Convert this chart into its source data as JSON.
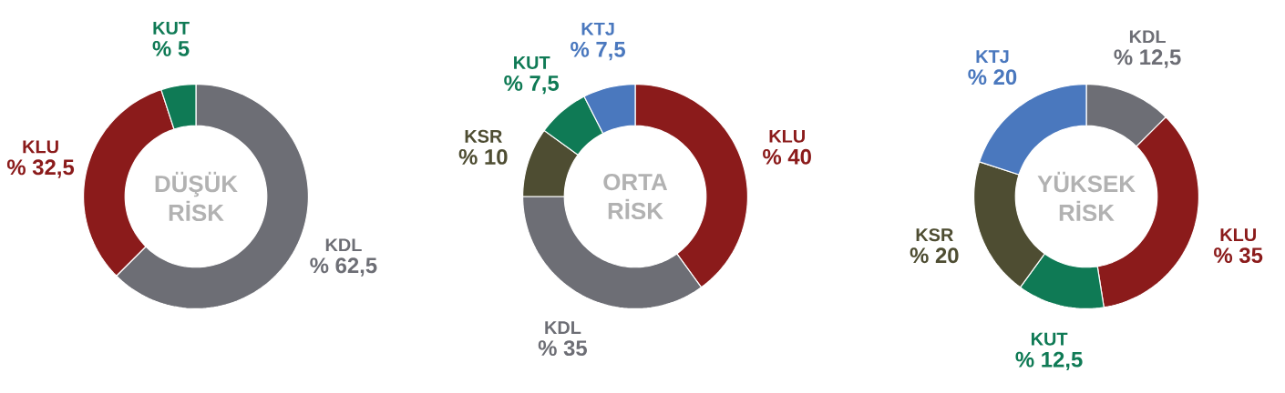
{
  "chart_data": [
    {
      "type": "donut",
      "title": "DÜŞÜK RİSK",
      "categories": [
        "KDL",
        "KLU",
        "KUT"
      ],
      "values": [
        62.5,
        32.5,
        5
      ],
      "colors": [
        "#6d6e75",
        "#8b1b1b",
        "#0f7a55"
      ],
      "value_labels": [
        "% 62,5",
        "% 32,5",
        "% 5"
      ]
    },
    {
      "type": "donut",
      "title": "ORTA RİSK",
      "categories": [
        "KLU",
        "KDL",
        "KSR",
        "KUT",
        "KTJ"
      ],
      "values": [
        40,
        35,
        10,
        7.5,
        7.5
      ],
      "colors": [
        "#8b1b1b",
        "#6d6e75",
        "#4e4d32",
        "#0f7a55",
        "#4a78be"
      ],
      "value_labels": [
        "% 40",
        "% 35",
        "% 10",
        "% 7,5",
        "% 7,5"
      ]
    },
    {
      "type": "donut",
      "title": "YÜKSEK RİSK",
      "categories": [
        "KDL",
        "KLU",
        "KUT",
        "KSR",
        "KTJ"
      ],
      "values": [
        12.5,
        35,
        12.5,
        20,
        20
      ],
      "colors": [
        "#6d6e75",
        "#8b1b1b",
        "#0f7a55",
        "#4e4d32",
        "#4a78be"
      ],
      "value_labels": [
        "% 12,5",
        "% 35",
        "% 12,5",
        "% 20",
        "% 20"
      ]
    }
  ]
}
